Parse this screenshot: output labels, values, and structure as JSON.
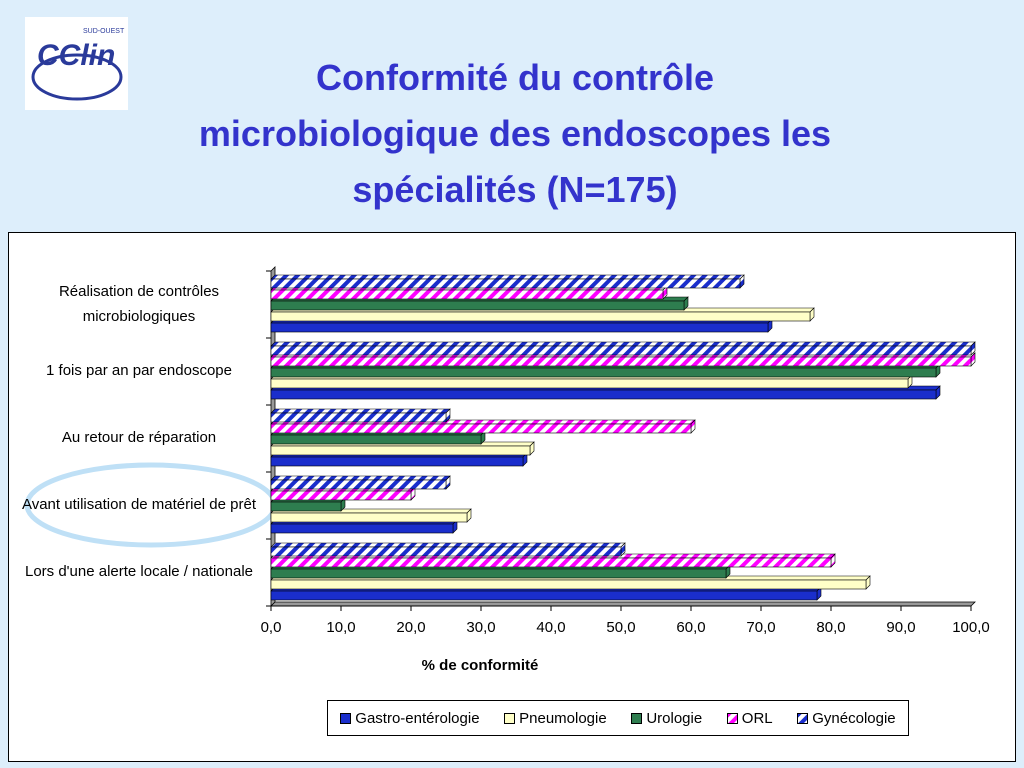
{
  "logo": {
    "text": "CClin",
    "sub": "SUD-OUEST"
  },
  "chart_data": {
    "type": "hbar",
    "title": [
      "Conformité du contrôle",
      "microbiologique des endoscopes les",
      "spécialités (N=175)"
    ],
    "categories": [
      "Réalisation de contrôles microbiologiques",
      "1 fois par an par endoscope",
      "Au retour de réparation",
      "Avant utilisation de matériel de prêt",
      "Lors d'une alerte locale / nationale"
    ],
    "series": [
      {
        "name": "Gastro-entérologie",
        "color": "#1a2ecc",
        "values": [
          71,
          95,
          36,
          26,
          78
        ]
      },
      {
        "name": "Pneumologie",
        "color": "#ffffc8",
        "values": [
          77,
          91,
          37,
          28,
          85
        ]
      },
      {
        "name": "Urologie",
        "color": "#2e7d4f",
        "values": [
          59,
          95,
          30,
          10,
          65
        ]
      },
      {
        "name": "ORL",
        "color": "#ff00ff",
        "pattern": "hatch",
        "values": [
          56,
          100,
          60,
          20,
          80
        ]
      },
      {
        "name": "Gynécologie",
        "color": "#1a2ecc",
        "pattern": "hatch",
        "values": [
          67,
          100,
          25,
          25,
          50
        ]
      }
    ],
    "xlabel": "% de conformité",
    "xlim": [
      0,
      100
    ],
    "xticks": [
      {
        "value": 0,
        "label": "0,0"
      },
      {
        "value": 10,
        "label": "10,0"
      },
      {
        "value": 20,
        "label": "20,0"
      },
      {
        "value": 30,
        "label": "30,0"
      },
      {
        "value": 40,
        "label": "40,0"
      },
      {
        "value": 50,
        "label": "50,0"
      },
      {
        "value": 60,
        "label": "60,0"
      },
      {
        "value": 70,
        "label": "70,0"
      },
      {
        "value": 80,
        "label": "80,0"
      },
      {
        "value": 90,
        "label": "90,0"
      },
      {
        "value": 100,
        "label": "100,0"
      }
    ],
    "legend": "bottom"
  }
}
